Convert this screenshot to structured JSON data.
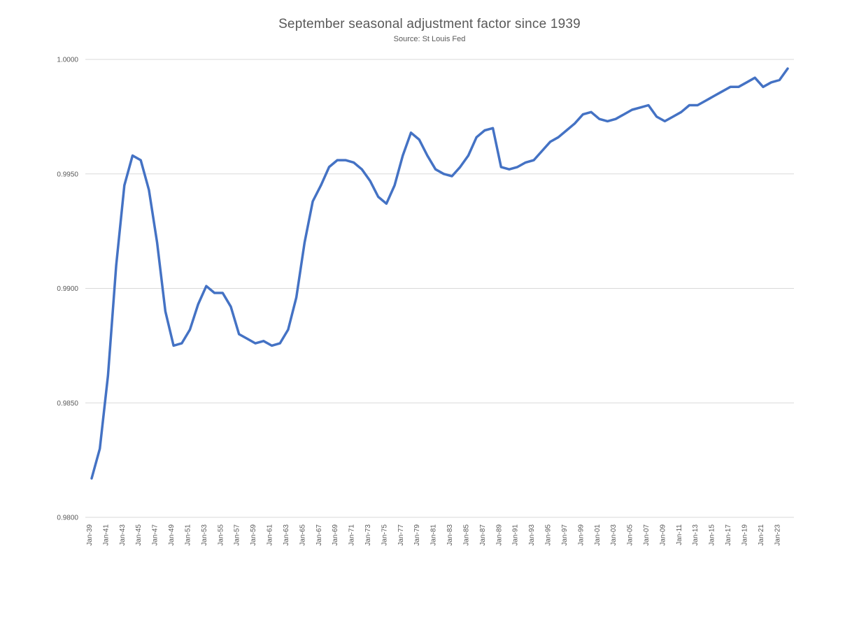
{
  "chart_data": {
    "type": "line",
    "title": "September seasonal adjustment factor since 1939",
    "subtitle": "Source: St Louis Fed",
    "grid": "horizontal-only",
    "legend": "none",
    "gridline_color": "#d9d9d9",
    "text_color": "#595959",
    "ylim": [
      0.98,
      1.0
    ],
    "y_ticks": [
      1.0,
      0.995,
      0.99,
      0.985,
      0.98
    ],
    "y_tick_labels": [
      "1.0000",
      "0.9950",
      "0.9900",
      "0.9850",
      "0.9800"
    ],
    "x_tick_years": [
      1939,
      1941,
      1943,
      1945,
      1947,
      1949,
      1951,
      1953,
      1955,
      1957,
      1959,
      1961,
      1963,
      1965,
      1967,
      1969,
      1971,
      1973,
      1975,
      1977,
      1979,
      1981,
      1983,
      1985,
      1987,
      1989,
      1991,
      1993,
      1995,
      1997,
      1999,
      2001,
      2003,
      2005,
      2007,
      2009,
      2011,
      2013,
      2015,
      2017,
      2019,
      2021,
      2023
    ],
    "x_tick_labels": [
      "Jan-39",
      "Jan-41",
      "Jan-43",
      "Jan-45",
      "Jan-47",
      "Jan-49",
      "Jan-51",
      "Jan-53",
      "Jan-55",
      "Jan-57",
      "Jan-59",
      "Jan-61",
      "Jan-63",
      "Jan-65",
      "Jan-67",
      "Jan-69",
      "Jan-71",
      "Jan-73",
      "Jan-75",
      "Jan-77",
      "Jan-79",
      "Jan-81",
      "Jan-83",
      "Jan-85",
      "Jan-87",
      "Jan-89",
      "Jan-91",
      "Jan-93",
      "Jan-95",
      "Jan-97",
      "Jan-99",
      "Jan-01",
      "Jan-03",
      "Jan-05",
      "Jan-07",
      "Jan-09",
      "Jan-11",
      "Jan-13",
      "Jan-15",
      "Jan-17",
      "Jan-19",
      "Jan-21",
      "Jan-23"
    ],
    "series": [
      {
        "name": "September seasonal adjustment factor",
        "color": "#4472c4",
        "start_year": 1939,
        "values": [
          0.9817,
          0.983,
          0.9862,
          0.991,
          0.9945,
          0.9958,
          0.9956,
          0.9943,
          0.992,
          0.989,
          0.9875,
          0.9876,
          0.9882,
          0.9893,
          0.9901,
          0.9898,
          0.9898,
          0.9892,
          0.988,
          0.9878,
          0.9876,
          0.9877,
          0.9875,
          0.9876,
          0.9882,
          0.9896,
          0.992,
          0.9938,
          0.9945,
          0.9953,
          0.9956,
          0.9956,
          0.9955,
          0.9952,
          0.9947,
          0.994,
          0.9937,
          0.9945,
          0.9958,
          0.9968,
          0.9965,
          0.9958,
          0.9952,
          0.995,
          0.9949,
          0.9953,
          0.9958,
          0.9966,
          0.9969,
          0.997,
          0.9953,
          0.9952,
          0.9953,
          0.9955,
          0.9956,
          0.996,
          0.9964,
          0.9966,
          0.9969,
          0.9972,
          0.9976,
          0.9977,
          0.9974,
          0.9973,
          0.9974,
          0.9976,
          0.9978,
          0.9979,
          0.998,
          0.9975,
          0.9973,
          0.9975,
          0.9977,
          0.998,
          0.998,
          0.9982,
          0.9984,
          0.9986,
          0.9988,
          0.9988,
          0.999,
          0.9992,
          0.9988,
          0.999,
          0.9991,
          0.9996
        ]
      }
    ]
  }
}
